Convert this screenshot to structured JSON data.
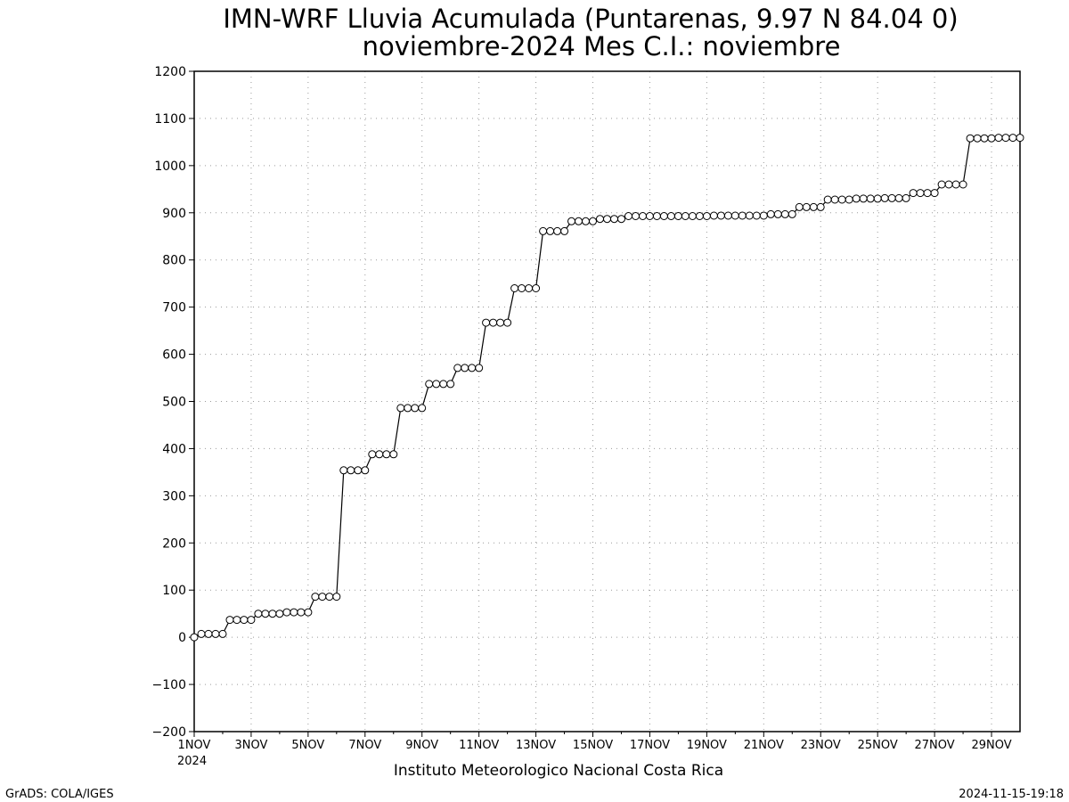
{
  "chart_data": {
    "type": "line",
    "title_line1": "IMN-WRF  Lluvia Acumulada (Puntarenas, 9.97  N 84.04  0)",
    "title_line2": "noviembre-2024 Mes C.I.: noviembre",
    "xlabel": "Instituto Meteorologico Nacional Costa Rica",
    "ylabel": "",
    "footer_left": "GrADS: COLA/IGES",
    "footer_right": "2024-11-15-19:18",
    "ylim": [
      -200,
      1200
    ],
    "yticks": [
      -200,
      -100,
      0,
      100,
      200,
      300,
      400,
      500,
      600,
      700,
      800,
      900,
      1000,
      1100,
      1200
    ],
    "xlim": [
      1,
      30
    ],
    "xticks": [
      {
        "day": 1,
        "label": "1NOV",
        "sublabel": "2024"
      },
      {
        "day": 3,
        "label": "3NOV"
      },
      {
        "day": 5,
        "label": "5NOV"
      },
      {
        "day": 7,
        "label": "7NOV"
      },
      {
        "day": 9,
        "label": "9NOV"
      },
      {
        "day": 11,
        "label": "11NOV"
      },
      {
        "day": 13,
        "label": "13NOV"
      },
      {
        "day": 15,
        "label": "15NOV"
      },
      {
        "day": 17,
        "label": "17NOV"
      },
      {
        "day": 19,
        "label": "19NOV"
      },
      {
        "day": 21,
        "label": "21NOV"
      },
      {
        "day": 23,
        "label": "23NOV"
      },
      {
        "day": 25,
        "label": "25NOV"
      },
      {
        "day": 27,
        "label": "27NOV"
      },
      {
        "day": 29,
        "label": "29NOV"
      }
    ],
    "grid": true,
    "marker": "open-circle",
    "line_color": "#000000",
    "x_step_days": 0.25,
    "x_start_day": 1,
    "values": [
      0,
      7,
      7,
      7,
      7,
      37,
      37,
      37,
      37,
      50,
      50,
      50,
      50,
      53,
      53,
      53,
      53,
      86,
      86,
      86,
      86,
      354,
      354,
      354,
      354,
      388,
      388,
      388,
      388,
      486,
      486,
      486,
      486,
      537,
      537,
      537,
      537,
      571,
      571,
      571,
      571,
      667,
      667,
      667,
      667,
      740,
      740,
      740,
      740,
      861,
      861,
      861,
      861,
      882,
      882,
      882,
      882,
      887,
      887,
      887,
      887,
      893,
      893,
      893,
      893,
      893,
      893,
      893,
      893,
      893,
      893,
      893,
      893,
      894,
      894,
      894,
      894,
      894,
      894,
      894,
      894,
      897,
      897,
      897,
      897,
      912,
      912,
      912,
      912,
      928,
      928,
      928,
      928,
      930,
      930,
      930,
      930,
      931,
      931,
      931,
      931,
      942,
      942,
      942,
      942,
      960,
      960,
      960,
      960,
      1058,
      1058,
      1058,
      1058,
      1059,
      1059,
      1059,
      1059
    ]
  }
}
